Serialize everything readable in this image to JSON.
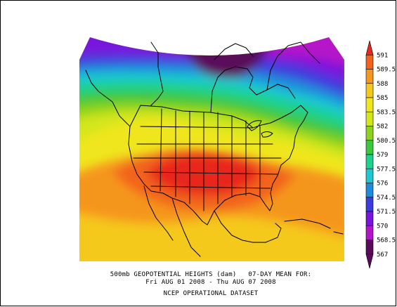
{
  "caption": {
    "line1": "500mb GEOPOTENTIAL HEIGHTS (dam)   07-DAY MEAN FOR:",
    "line2": "Fri AUG 01 2008 - Thu AUG 07 2008",
    "line3": "NCEP OPERATIONAL DATASET"
  },
  "colorbar": {
    "levels": [
      {
        "label": "591",
        "color": "#e8281e"
      },
      {
        "label": "589.5",
        "color": "#f2641e"
      },
      {
        "label": "588",
        "color": "#f5961e"
      },
      {
        "label": "585",
        "color": "#f5c81e"
      },
      {
        "label": "583.5",
        "color": "#f0e61e"
      },
      {
        "label": "582",
        "color": "#d2e61e"
      },
      {
        "label": "580.5",
        "color": "#8cd21e"
      },
      {
        "label": "579",
        "color": "#3cc83c"
      },
      {
        "label": "577.5",
        "color": "#1ed28c"
      },
      {
        "label": "576",
        "color": "#1ec8d2"
      },
      {
        "label": "574.5",
        "color": "#1e8cdc"
      },
      {
        "label": "571.5",
        "color": "#3c3cdc"
      },
      {
        "label": "570",
        "color": "#7814dc"
      },
      {
        "label": "568.5",
        "color": "#b414c8"
      },
      {
        "label": "567",
        "color": "#5a0a5a"
      }
    ]
  }
}
